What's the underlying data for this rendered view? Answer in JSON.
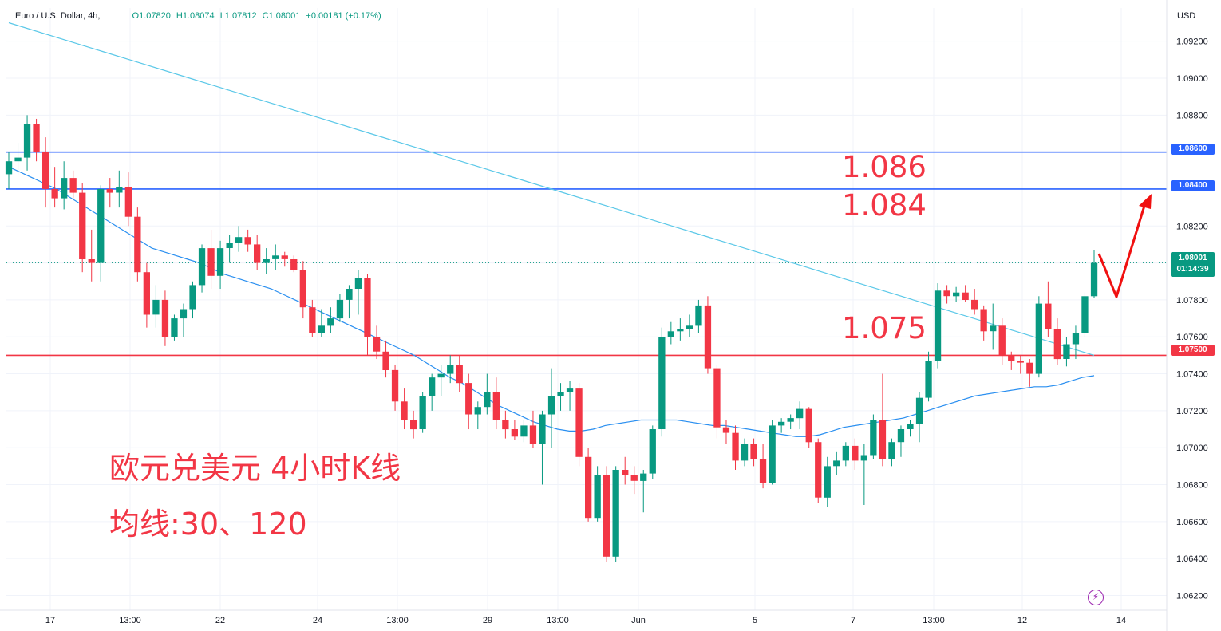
{
  "header": {
    "symbol": "Euro / U.S. Dollar, 4h,",
    "open": "O1.07820",
    "high": "H1.08074",
    "low": "L1.07812",
    "close": "C1.08001",
    "change": "+0.00181 (+0.17%)"
  },
  "currency_label": "USD",
  "price_axis": {
    "ticks": [
      "1.09200",
      "1.09000",
      "1.08800",
      "1.08200",
      "1.07800",
      "1.07600",
      "1.07400",
      "1.07200",
      "1.07000",
      "1.06800",
      "1.06600",
      "1.06400",
      "1.06200"
    ]
  },
  "time_axis": {
    "ticks": [
      "17",
      "13:00",
      "22",
      "24",
      "13:00",
      "29",
      "13:00",
      "Jun",
      "5",
      "7",
      "13:00",
      "12",
      "14"
    ]
  },
  "horizontal_lines": [
    {
      "label": "1.08600",
      "color": "#2962ff"
    },
    {
      "label": "1.08400",
      "color": "#2962ff"
    },
    {
      "label": "1.07500",
      "color": "#f23645"
    }
  ],
  "last_price": {
    "value": "1.08001",
    "countdown": "01:14:39",
    "color": "#089981"
  },
  "annotations": {
    "level_1": "1.086",
    "level_2": "1.084",
    "level_3": "1.075",
    "title": "欧元兑美元 4小时K线",
    "ma_note": "均线:30、120"
  },
  "colors": {
    "up": "#089981",
    "down": "#f23645",
    "ma30": "#2a8ff0",
    "ma120": "#5bc8e8",
    "arrow": "#f01010"
  },
  "chart_data": {
    "type": "candlestick",
    "title": "Euro / U.S. Dollar, 4h",
    "yunit": "USD",
    "ylim": [
      1.0612,
      1.0938
    ],
    "grid": true,
    "candles": [
      [
        1.0848,
        1.086,
        1.084,
        1.0855
      ],
      [
        1.0855,
        1.0865,
        1.0848,
        1.0857
      ],
      [
        1.0857,
        1.088,
        1.085,
        1.0875
      ],
      [
        1.0875,
        1.0878,
        1.0855,
        1.086
      ],
      [
        1.086,
        1.0868,
        1.083,
        1.084
      ],
      [
        1.084,
        1.0852,
        1.083,
        1.0835
      ],
      [
        1.0835,
        1.0855,
        1.0829,
        1.0846
      ],
      [
        1.0846,
        1.085,
        1.0835,
        1.0838
      ],
      [
        1.0838,
        1.0843,
        1.0795,
        1.0802
      ],
      [
        1.0802,
        1.0818,
        1.079,
        1.08
      ],
      [
        1.08,
        1.0842,
        1.079,
        1.084
      ],
      [
        1.084,
        1.0846,
        1.083,
        1.0838
      ],
      [
        1.0838,
        1.085,
        1.083,
        1.0841
      ],
      [
        1.0841,
        1.0849,
        1.082,
        1.0825
      ],
      [
        1.0825,
        1.083,
        1.079,
        1.0795
      ],
      [
        1.0795,
        1.08,
        1.0765,
        1.0772
      ],
      [
        1.0772,
        1.0788,
        1.0765,
        1.078
      ],
      [
        1.078,
        1.0785,
        1.0755,
        1.076
      ],
      [
        1.076,
        1.0772,
        1.0758,
        1.077
      ],
      [
        1.077,
        1.0778,
        1.076,
        1.0775
      ],
      [
        1.0775,
        1.079,
        1.077,
        1.0788
      ],
      [
        1.0788,
        1.081,
        1.0784,
        1.0808
      ],
      [
        1.0808,
        1.0818,
        1.0786,
        1.0793
      ],
      [
        1.0793,
        1.0812,
        1.0786,
        1.0808
      ],
      [
        1.0808,
        1.0815,
        1.08,
        1.0811
      ],
      [
        1.0811,
        1.082,
        1.0806,
        1.0814
      ],
      [
        1.0814,
        1.0818,
        1.0806,
        1.081
      ],
      [
        1.081,
        1.0815,
        1.0796,
        1.08
      ],
      [
        1.08,
        1.0808,
        1.0794,
        1.0802
      ],
      [
        1.0802,
        1.081,
        1.0796,
        1.0804
      ],
      [
        1.0804,
        1.0806,
        1.0798,
        1.0802
      ],
      [
        1.0802,
        1.0804,
        1.0795,
        1.0796
      ],
      [
        1.0796,
        1.0801,
        1.077,
        1.0776
      ],
      [
        1.0776,
        1.078,
        1.076,
        1.0762
      ],
      [
        1.0762,
        1.0775,
        1.076,
        1.0766
      ],
      [
        1.0766,
        1.0776,
        1.0762,
        1.077
      ],
      [
        1.077,
        1.0783,
        1.0768,
        1.078
      ],
      [
        1.078,
        1.0788,
        1.077,
        1.0786
      ],
      [
        1.0786,
        1.0796,
        1.0772,
        1.0792
      ],
      [
        1.0792,
        1.0794,
        1.075,
        1.076
      ],
      [
        1.076,
        1.0766,
        1.0748,
        1.0752
      ],
      [
        1.0752,
        1.0758,
        1.0738,
        1.0742
      ],
      [
        1.0742,
        1.0745,
        1.072,
        1.0725
      ],
      [
        1.0725,
        1.0732,
        1.071,
        1.0715
      ],
      [
        1.0715,
        1.072,
        1.0705,
        1.071
      ],
      [
        1.071,
        1.073,
        1.0708,
        1.0728
      ],
      [
        1.0728,
        1.074,
        1.072,
        1.0738
      ],
      [
        1.0738,
        1.0745,
        1.0728,
        1.074
      ],
      [
        1.074,
        1.075,
        1.0735,
        1.0745
      ],
      [
        1.0745,
        1.075,
        1.073,
        1.0735
      ],
      [
        1.0735,
        1.074,
        1.071,
        1.0718
      ],
      [
        1.0718,
        1.0725,
        1.071,
        1.0722
      ],
      [
        1.0722,
        1.074,
        1.0718,
        1.073
      ],
      [
        1.073,
        1.0738,
        1.071,
        1.0715
      ],
      [
        1.0715,
        1.072,
        1.0705,
        1.071
      ],
      [
        1.071,
        1.0715,
        1.0704,
        1.0706
      ],
      [
        1.0706,
        1.0715,
        1.0703,
        1.0712
      ],
      [
        1.0712,
        1.072,
        1.07,
        1.0702
      ],
      [
        1.0702,
        1.072,
        1.068,
        1.0718
      ],
      [
        1.0718,
        1.0743,
        1.07,
        1.0728
      ],
      [
        1.0728,
        1.0735,
        1.072,
        1.073
      ],
      [
        1.073,
        1.0736,
        1.072,
        1.0732
      ],
      [
        1.0732,
        1.0735,
        1.069,
        1.0695
      ],
      [
        1.0695,
        1.07,
        1.066,
        1.0662
      ],
      [
        1.0662,
        1.069,
        1.066,
        1.0685
      ],
      [
        1.0685,
        1.069,
        1.0638,
        1.0641
      ],
      [
        1.0641,
        1.069,
        1.0638,
        1.0688
      ],
      [
        1.0688,
        1.0695,
        1.068,
        1.0685
      ],
      [
        1.0685,
        1.069,
        1.0675,
        1.0682
      ],
      [
        1.0682,
        1.0688,
        1.0665,
        1.0686
      ],
      [
        1.0686,
        1.0712,
        1.0683,
        1.071
      ],
      [
        1.071,
        1.0765,
        1.0706,
        1.076
      ],
      [
        1.076,
        1.0768,
        1.0756,
        1.0763
      ],
      [
        1.0763,
        1.077,
        1.0758,
        1.0764
      ],
      [
        1.0764,
        1.0772,
        1.076,
        1.0766
      ],
      [
        1.0766,
        1.078,
        1.0762,
        1.0777
      ],
      [
        1.0777,
        1.0782,
        1.074,
        1.0743
      ],
      [
        1.0743,
        1.0745,
        1.0705,
        1.0711
      ],
      [
        1.0711,
        1.0715,
        1.0702,
        1.0708
      ],
      [
        1.0708,
        1.0712,
        1.0688,
        1.0693
      ],
      [
        1.0693,
        1.0705,
        1.069,
        1.0702
      ],
      [
        1.0702,
        1.0705,
        1.069,
        1.0694
      ],
      [
        1.0694,
        1.0702,
        1.0678,
        1.0681
      ],
      [
        1.0681,
        1.0715,
        1.068,
        1.0712
      ],
      [
        1.0712,
        1.0716,
        1.0708,
        1.0714
      ],
      [
        1.0714,
        1.0718,
        1.071,
        1.0716
      ],
      [
        1.0716,
        1.0725,
        1.071,
        1.0721
      ],
      [
        1.0721,
        1.0722,
        1.07,
        1.0703
      ],
      [
        1.0703,
        1.0705,
        1.067,
        1.0673
      ],
      [
        1.0673,
        1.0695,
        1.0668,
        1.069
      ],
      [
        1.069,
        1.0698,
        1.0685,
        1.0693
      ],
      [
        1.0693,
        1.0703,
        1.069,
        1.0701
      ],
      [
        1.0701,
        1.0705,
        1.0688,
        1.0693
      ],
      [
        1.0693,
        1.0702,
        1.0669,
        1.0696
      ],
      [
        1.0696,
        1.0718,
        1.0694,
        1.0715
      ],
      [
        1.0715,
        1.074,
        1.069,
        1.0694
      ],
      [
        1.0694,
        1.0705,
        1.069,
        1.0703
      ],
      [
        1.0703,
        1.0712,
        1.0695,
        1.071
      ],
      [
        1.071,
        1.0715,
        1.0706,
        1.0713
      ],
      [
        1.0713,
        1.073,
        1.0703,
        1.0727
      ],
      [
        1.0727,
        1.0752,
        1.0725,
        1.0747
      ],
      [
        1.0747,
        1.0789,
        1.0743,
        1.0785
      ],
      [
        1.0785,
        1.0788,
        1.0778,
        1.0782
      ],
      [
        1.0782,
        1.0787,
        1.0779,
        1.0784
      ],
      [
        1.0784,
        1.0788,
        1.0779,
        1.078
      ],
      [
        1.078,
        1.0786,
        1.0772,
        1.0775
      ],
      [
        1.0775,
        1.0777,
        1.0758,
        1.0763
      ],
      [
        1.0763,
        1.0778,
        1.0753,
        1.0766
      ],
      [
        1.0766,
        1.077,
        1.0745,
        1.075
      ],
      [
        1.075,
        1.0752,
        1.0742,
        1.0747
      ],
      [
        1.0747,
        1.075,
        1.074,
        1.0746
      ],
      [
        1.0746,
        1.0748,
        1.0733,
        1.074
      ],
      [
        1.074,
        1.0782,
        1.0738,
        1.0778
      ],
      [
        1.0778,
        1.079,
        1.076,
        1.0764
      ],
      [
        1.0764,
        1.077,
        1.0745,
        1.0748
      ],
      [
        1.0748,
        1.076,
        1.0744,
        1.0756
      ],
      [
        1.0756,
        1.0766,
        1.0748,
        1.0762
      ],
      [
        1.0762,
        1.0784,
        1.076,
        1.0782
      ],
      [
        1.0782,
        1.0807,
        1.0781,
        1.08
      ]
    ],
    "ma30": [
      1.0852,
      1.0849,
      1.0846,
      1.0843,
      1.084,
      1.0836,
      1.0832,
      1.0828,
      1.0824,
      1.082,
      1.0816,
      1.0812,
      1.0808,
      1.0806,
      1.0804,
      1.0802,
      1.08,
      1.0797,
      1.0794,
      1.0792,
      1.079,
      1.0788,
      1.0786,
      1.0783,
      1.078,
      1.0777,
      1.0774,
      1.0771,
      1.0768,
      1.0765,
      1.0762,
      1.0759,
      1.0756,
      1.0753,
      1.075,
      1.0746,
      1.0742,
      1.0738,
      1.0735,
      1.0731,
      1.0727,
      1.0723,
      1.072,
      1.0717,
      1.0714,
      1.0712,
      1.071,
      1.0709,
      1.0709,
      1.071,
      1.0712,
      1.0713,
      1.0714,
      1.0715,
      1.0715,
      1.0715,
      1.0715,
      1.0714,
      1.0713,
      1.0712,
      1.0712,
      1.0711,
      1.071,
      1.0709,
      1.0708,
      1.0707,
      1.0706,
      1.0706,
      1.0707,
      1.0709,
      1.0711,
      1.0712,
      1.0713,
      1.0714,
      1.0715,
      1.0716,
      1.0718,
      1.072,
      1.0722,
      1.0724,
      1.0726,
      1.0728,
      1.0729,
      1.073,
      1.0731,
      1.0732,
      1.0733,
      1.0733,
      1.0734,
      1.0736,
      1.0738,
      1.0739
    ],
    "ma120": [
      1.093,
      1.092,
      1.091,
      1.09,
      1.089,
      1.088,
      1.087,
      1.086,
      1.085,
      1.084,
      1.083,
      1.082,
      1.081,
      1.08,
      1.079,
      1.078,
      1.077,
      1.076,
      1.075
    ]
  }
}
